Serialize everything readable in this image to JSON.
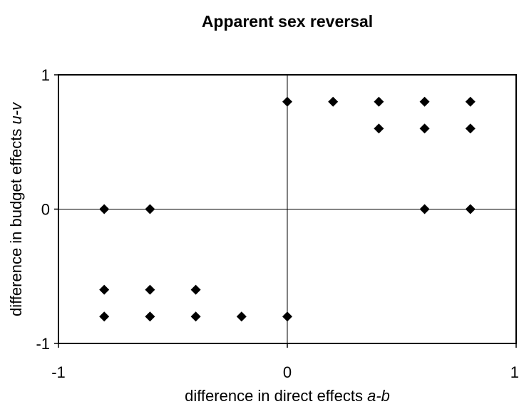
{
  "chart_data": {
    "type": "scatter",
    "title": "Apparent sex reversal",
    "xlabel": [
      "difference in direct effects",
      "a-b"
    ],
    "ylabel": [
      "difference in budget effects",
      "u-v"
    ],
    "xlim": [
      -1,
      1
    ],
    "ylim": [
      -1,
      1
    ],
    "xticks": [
      -1,
      0,
      1
    ],
    "yticks": [
      -1,
      0,
      1
    ],
    "color": "#000000",
    "x": [
      0,
      0.2,
      0.4,
      0.6,
      0.8,
      0.4,
      0.6,
      0.8,
      -0.8,
      -0.6,
      0.6,
      0.8,
      -0.8,
      -0.6,
      -0.4,
      -0.8,
      -0.6,
      -0.4,
      -0.2,
      0
    ],
    "values": [
      0.8,
      0.8,
      0.8,
      0.8,
      0.8,
      0.6,
      0.6,
      0.6,
      0,
      0,
      0,
      0,
      -0.6,
      -0.6,
      -0.6,
      -0.8,
      -0.8,
      -0.8,
      -0.8,
      -0.8
    ]
  }
}
